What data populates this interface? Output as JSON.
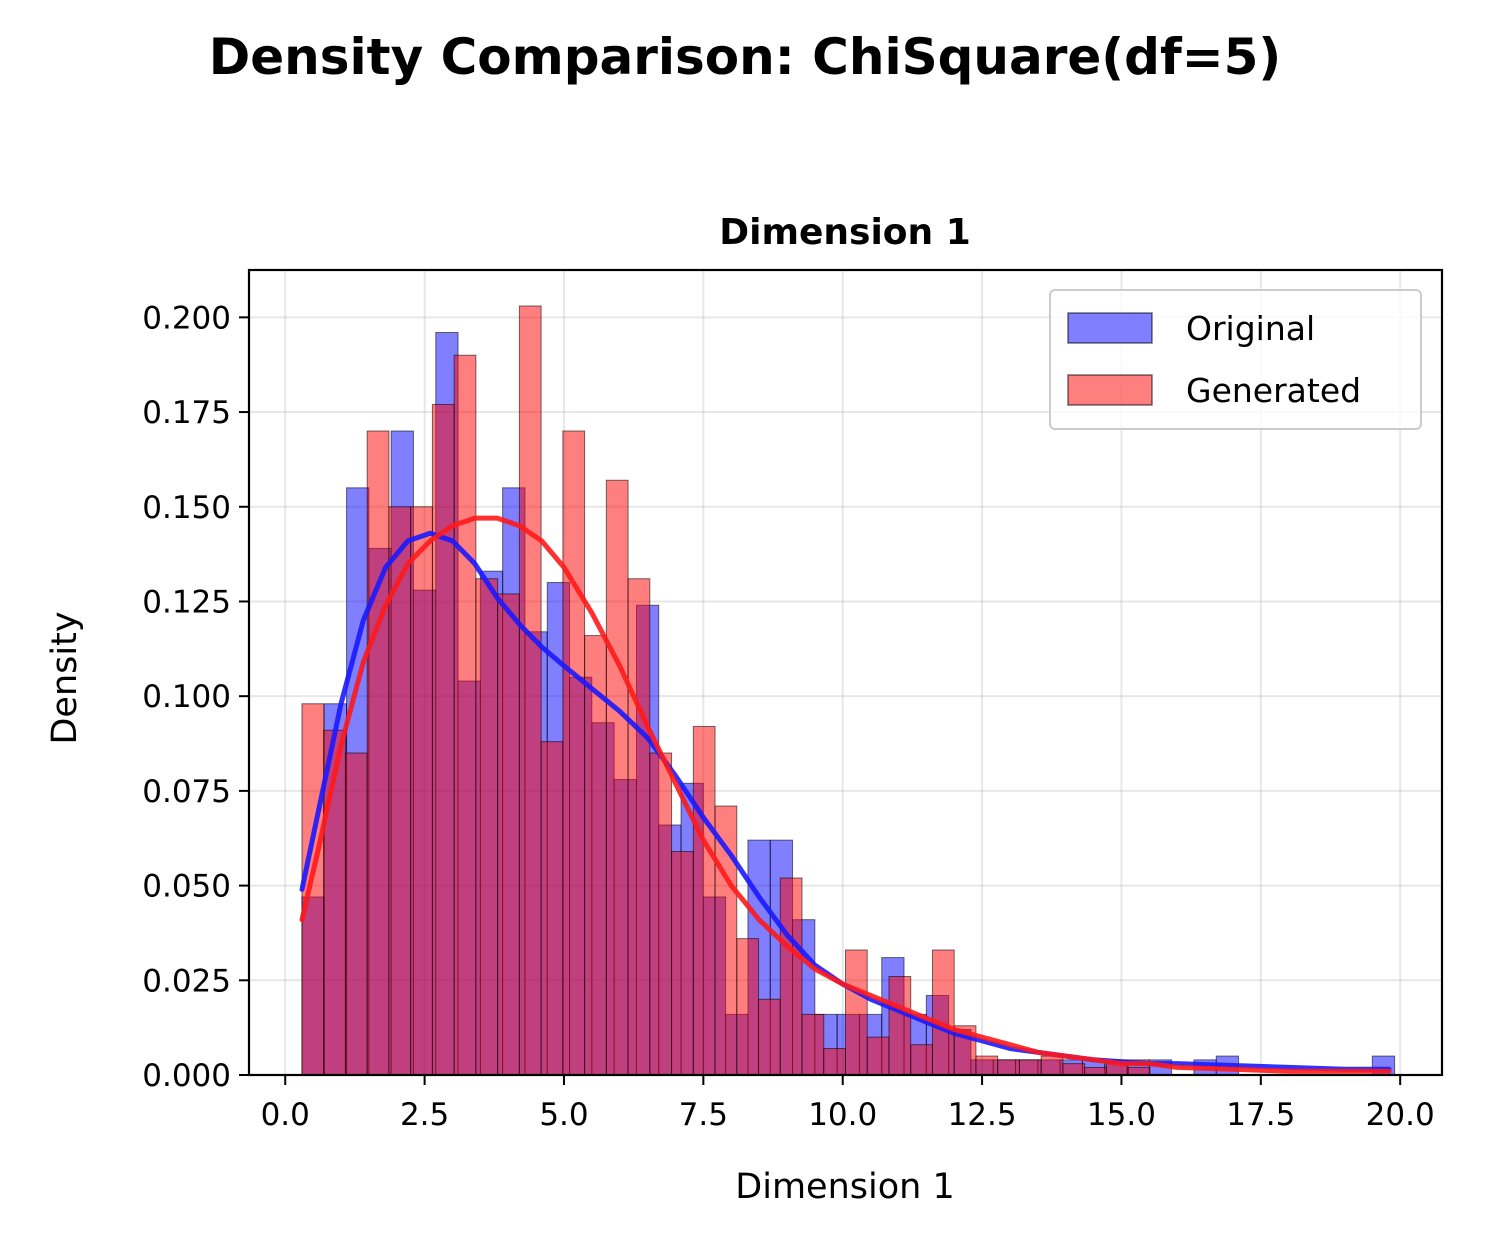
{
  "suptitle": "Density Comparison: ChiSquare(df=5)",
  "chart_data": {
    "type": "bar",
    "title": "Dimension 1",
    "xlabel": "Dimension 1",
    "ylabel": "Density",
    "xlim": [
      -0.65,
      20.75
    ],
    "ylim": [
      0.0,
      0.2125
    ],
    "xticks": [
      0.0,
      2.5,
      5.0,
      7.5,
      10.0,
      12.5,
      15.0,
      17.5,
      20.0
    ],
    "xtick_labels": [
      "0.0",
      "2.5",
      "5.0",
      "7.5",
      "10.0",
      "12.5",
      "15.0",
      "17.5",
      "20.0"
    ],
    "yticks": [
      0.0,
      0.025,
      0.05,
      0.075,
      0.1,
      0.125,
      0.15,
      0.175,
      0.2
    ],
    "ytick_labels": [
      "0.000",
      "0.025",
      "0.050",
      "0.075",
      "0.100",
      "0.125",
      "0.150",
      "0.175",
      "0.200"
    ],
    "grid": true,
    "legend_position": "top-right",
    "series": [
      {
        "name": "Original",
        "kind": "histogram",
        "color": "#0000ff",
        "alpha": 0.5,
        "bin_edges": [
          0.3,
          0.7,
          1.1,
          1.5,
          1.9,
          2.3,
          2.7,
          3.1,
          3.5,
          3.9,
          4.3,
          4.7,
          5.1,
          5.5,
          5.9,
          6.3,
          6.7,
          7.1,
          7.5,
          7.9,
          8.3,
          8.7,
          9.1,
          9.5,
          9.9,
          10.3,
          10.7,
          11.1,
          11.5,
          11.9,
          12.3,
          12.7,
          13.1,
          13.5,
          13.9,
          14.3,
          14.7,
          15.1,
          15.5,
          15.9,
          16.3,
          16.7,
          17.1,
          17.5,
          17.9,
          18.3,
          18.7,
          19.1,
          19.5,
          19.9
        ],
        "values": [
          0.047,
          0.098,
          0.155,
          0.139,
          0.17,
          0.128,
          0.196,
          0.104,
          0.133,
          0.155,
          0.117,
          0.13,
          0.105,
          0.093,
          0.078,
          0.124,
          0.066,
          0.077,
          0.047,
          0.016,
          0.062,
          0.062,
          0.041,
          0.016,
          0.016,
          0.016,
          0.031,
          0.016,
          0.021,
          0.012,
          0.004,
          0.004,
          0.004,
          0.004,
          0.004,
          0.004,
          0.004,
          0.004,
          0.004,
          0.0,
          0.004,
          0.005,
          0.0,
          0.0,
          0.0,
          0.0,
          0.0,
          0.0,
          0.005
        ]
      },
      {
        "name": "Generated",
        "kind": "histogram",
        "color": "#ff0000",
        "alpha": 0.5,
        "bin_edges": [
          0.3,
          0.69,
          1.08,
          1.47,
          1.86,
          2.25,
          2.64,
          3.03,
          3.42,
          3.81,
          4.2,
          4.59,
          4.98,
          5.37,
          5.76,
          6.15,
          6.54,
          6.93,
          7.32,
          7.71,
          8.1,
          8.49,
          8.88,
          9.27,
          9.66,
          10.05,
          10.44,
          10.83,
          11.22,
          11.61,
          12.0,
          12.39,
          12.78,
          13.17,
          13.56,
          13.95,
          14.34,
          14.73,
          15.12,
          15.51,
          15.9,
          16.29,
          16.68,
          17.07,
          17.46,
          17.85,
          18.24,
          18.63,
          19.02,
          19.41,
          19.8
        ],
        "values": [
          0.098,
          0.091,
          0.085,
          0.17,
          0.15,
          0.15,
          0.177,
          0.19,
          0.131,
          0.127,
          0.203,
          0.088,
          0.17,
          0.116,
          0.157,
          0.131,
          0.085,
          0.059,
          0.092,
          0.071,
          0.036,
          0.02,
          0.052,
          0.016,
          0.007,
          0.033,
          0.01,
          0.026,
          0.008,
          0.033,
          0.013,
          0.005,
          0.004,
          0.004,
          0.005,
          0.003,
          0.002,
          0.003,
          0.002,
          0.0,
          0.0,
          0.0,
          0.0,
          0.0,
          0.0,
          0.0,
          0.0,
          0.0,
          0.0,
          0.0
        ]
      },
      {
        "name": "",
        "kind": "kde",
        "color": "#1a1aff",
        "x": [
          0.3,
          0.6,
          1.0,
          1.4,
          1.8,
          2.2,
          2.6,
          3.0,
          3.4,
          3.8,
          4.2,
          4.6,
          5.0,
          5.5,
          6.0,
          6.5,
          7.0,
          7.5,
          8.0,
          8.5,
          9.0,
          9.5,
          10.0,
          10.5,
          11.0,
          11.5,
          12.0,
          12.5,
          13.0,
          13.5,
          14.0,
          14.5,
          15.0,
          15.5,
          16.0,
          17.0,
          18.0,
          19.0,
          19.8
        ],
        "y": [
          0.049,
          0.07,
          0.098,
          0.12,
          0.134,
          0.141,
          0.143,
          0.141,
          0.135,
          0.126,
          0.119,
          0.113,
          0.108,
          0.102,
          0.096,
          0.089,
          0.079,
          0.068,
          0.058,
          0.047,
          0.037,
          0.029,
          0.024,
          0.02,
          0.017,
          0.014,
          0.011,
          0.009,
          0.007,
          0.006,
          0.005,
          0.004,
          0.0035,
          0.003,
          0.003,
          0.0025,
          0.002,
          0.0015,
          0.0015
        ]
      },
      {
        "name": "",
        "kind": "kde",
        "color": "#ff1a1a",
        "x": [
          0.3,
          0.6,
          1.0,
          1.4,
          1.8,
          2.2,
          2.6,
          3.0,
          3.4,
          3.8,
          4.2,
          4.6,
          5.0,
          5.5,
          6.0,
          6.5,
          7.0,
          7.5,
          8.0,
          8.5,
          9.0,
          9.5,
          10.0,
          10.5,
          11.0,
          11.5,
          12.0,
          12.5,
          13.0,
          13.5,
          14.0,
          14.5,
          15.0,
          15.5,
          16.0,
          17.0,
          18.0,
          19.0,
          19.8
        ],
        "y": [
          0.041,
          0.06,
          0.087,
          0.109,
          0.124,
          0.135,
          0.141,
          0.145,
          0.147,
          0.147,
          0.145,
          0.141,
          0.134,
          0.122,
          0.108,
          0.092,
          0.077,
          0.062,
          0.05,
          0.041,
          0.034,
          0.028,
          0.024,
          0.021,
          0.018,
          0.015,
          0.012,
          0.01,
          0.008,
          0.006,
          0.005,
          0.004,
          0.003,
          0.003,
          0.002,
          0.0015,
          0.001,
          0.001,
          0.001
        ]
      }
    ]
  }
}
